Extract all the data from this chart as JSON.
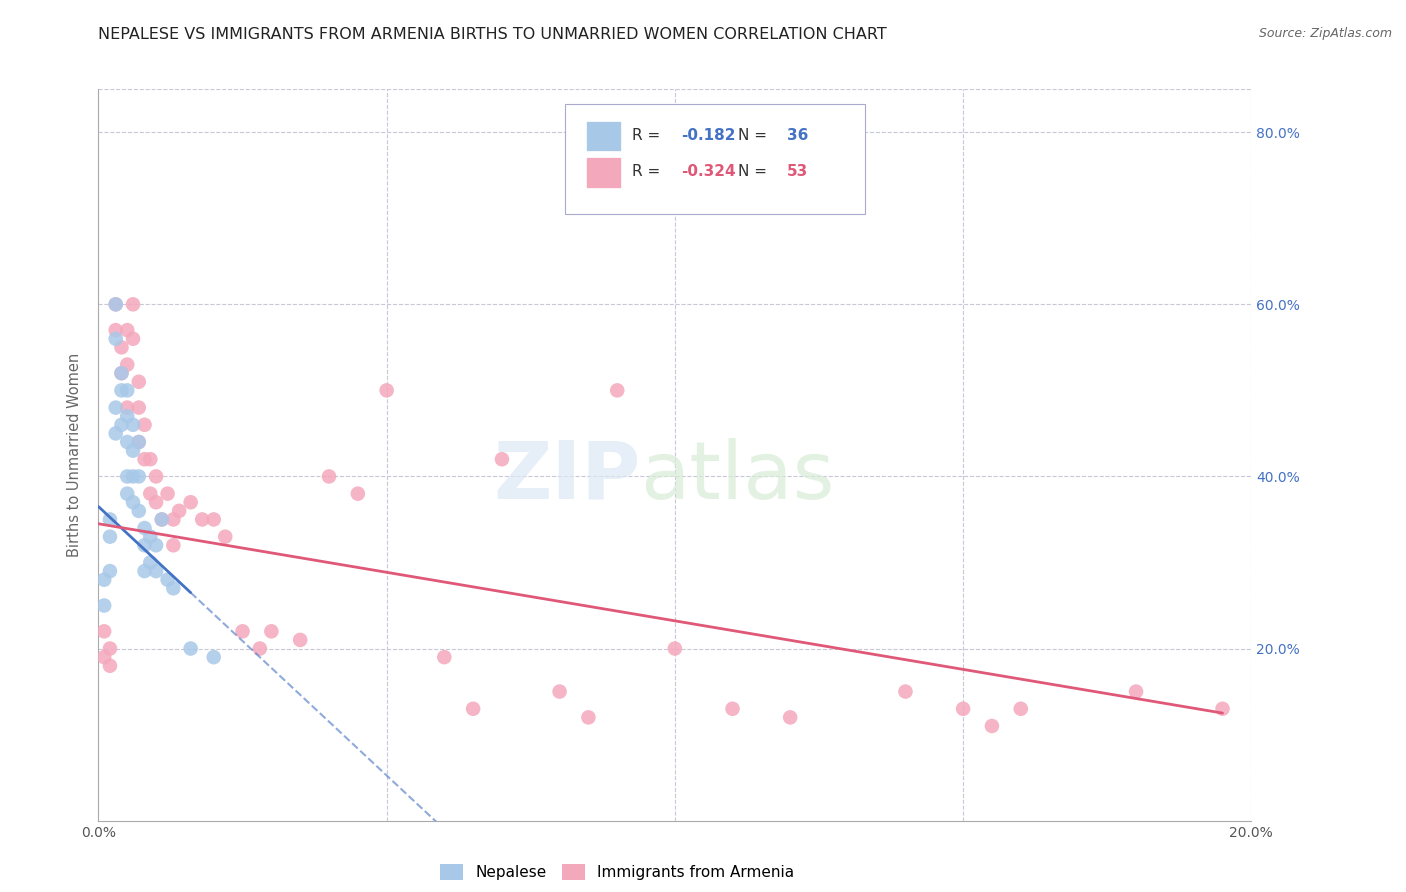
{
  "title": "NEPALESE VS IMMIGRANTS FROM ARMENIA BIRTHS TO UNMARRIED WOMEN CORRELATION CHART",
  "source": "Source: ZipAtlas.com",
  "ylabel": "Births to Unmarried Women",
  "legend_label_1": "Nepalese",
  "legend_label_2": "Immigrants from Armenia",
  "R1": -0.182,
  "N1": 36,
  "R2": -0.324,
  "N2": 53,
  "color1": "#a8c8e8",
  "color2": "#f4a8bc",
  "line_color1": "#4472c4",
  "line_color2": "#e05878",
  "background_color": "#ffffff",
  "grid_color": "#c8c8d8",
  "xlim": [
    0.0,
    0.2
  ],
  "ylim": [
    0.0,
    0.85
  ],
  "nepalese_x": [
    0.001,
    0.001,
    0.002,
    0.002,
    0.002,
    0.003,
    0.003,
    0.003,
    0.003,
    0.004,
    0.004,
    0.004,
    0.005,
    0.005,
    0.005,
    0.005,
    0.005,
    0.006,
    0.006,
    0.006,
    0.006,
    0.007,
    0.007,
    0.007,
    0.008,
    0.008,
    0.008,
    0.009,
    0.009,
    0.01,
    0.01,
    0.011,
    0.012,
    0.013,
    0.016,
    0.02
  ],
  "nepalese_y": [
    0.25,
    0.28,
    0.33,
    0.29,
    0.35,
    0.6,
    0.56,
    0.48,
    0.45,
    0.52,
    0.5,
    0.46,
    0.5,
    0.47,
    0.44,
    0.4,
    0.38,
    0.46,
    0.43,
    0.4,
    0.37,
    0.44,
    0.4,
    0.36,
    0.34,
    0.32,
    0.29,
    0.33,
    0.3,
    0.32,
    0.29,
    0.35,
    0.28,
    0.27,
    0.2,
    0.19
  ],
  "armenia_x": [
    0.001,
    0.001,
    0.002,
    0.002,
    0.003,
    0.003,
    0.004,
    0.004,
    0.005,
    0.005,
    0.005,
    0.006,
    0.006,
    0.007,
    0.007,
    0.007,
    0.008,
    0.008,
    0.009,
    0.009,
    0.01,
    0.01,
    0.011,
    0.012,
    0.013,
    0.013,
    0.014,
    0.016,
    0.018,
    0.02,
    0.022,
    0.025,
    0.028,
    0.03,
    0.035,
    0.04,
    0.045,
    0.05,
    0.06,
    0.065,
    0.07,
    0.08,
    0.085,
    0.09,
    0.1,
    0.11,
    0.12,
    0.14,
    0.15,
    0.155,
    0.16,
    0.18,
    0.195
  ],
  "armenia_y": [
    0.19,
    0.22,
    0.2,
    0.18,
    0.6,
    0.57,
    0.55,
    0.52,
    0.57,
    0.53,
    0.48,
    0.6,
    0.56,
    0.51,
    0.48,
    0.44,
    0.46,
    0.42,
    0.42,
    0.38,
    0.4,
    0.37,
    0.35,
    0.38,
    0.35,
    0.32,
    0.36,
    0.37,
    0.35,
    0.35,
    0.33,
    0.22,
    0.2,
    0.22,
    0.21,
    0.4,
    0.38,
    0.5,
    0.19,
    0.13,
    0.42,
    0.15,
    0.12,
    0.5,
    0.2,
    0.13,
    0.12,
    0.15,
    0.13,
    0.11,
    0.13,
    0.15,
    0.13
  ]
}
